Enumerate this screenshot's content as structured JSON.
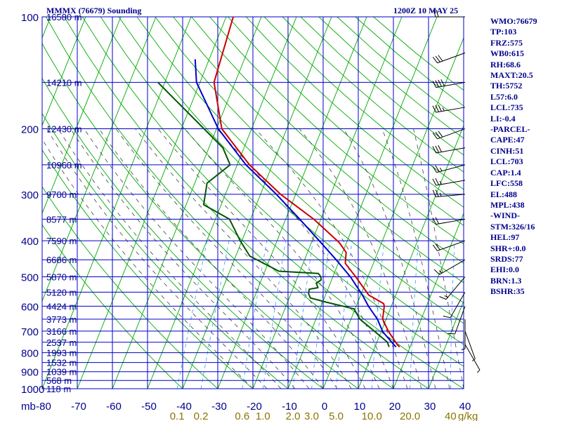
{
  "header": {
    "title_left": "MMMX (76679) Sounding",
    "title_right": "1200Z 10 MAY 25"
  },
  "side_panel": {
    "lines": [
      "WMO:76679",
      "TP:103",
      "FRZ:575",
      "WB0:615",
      "RH:68.6",
      "MAXT:20.5",
      "TH:5752",
      "L57:6.0",
      "LCL:735",
      "LI:-0.4",
      "-PARCEL-",
      "CAPE:47",
      "CINH:51",
      "LCL:703",
      "CAP:1.4",
      "LFC:558",
      "EL:488",
      "MPL:438",
      "-WIND-",
      "STM:326/16",
      "HEL:97",
      "SHR+:0.0",
      "SRDS:77",
      "EHI:0.0",
      "BRN:1.3",
      "BSHR:35"
    ]
  },
  "colors": {
    "background": "#ffffff",
    "grid": "#0000cc",
    "isotherm_dry_adiabat": "#00aa00",
    "moist_adiabat": "#404040",
    "mixing_ratio": "#3399ff",
    "temperature": "#cc0000",
    "parcel": "#0000cc",
    "dewpoint": "#005500",
    "wind_barb": "#000000",
    "text": "#00008b",
    "mixing_label": "#8b7500"
  },
  "chart_data": {
    "type": "line",
    "chart_kind": "skew-T log-P sounding",
    "y_scale": "log",
    "pressure_levels": [
      100,
      200,
      300,
      400,
      500,
      600,
      700,
      800,
      900,
      1000
    ],
    "x_ticks": [
      -80,
      -70,
      -60,
      -50,
      -40,
      -30,
      -20,
      -10,
      0,
      10,
      20,
      30,
      40
    ],
    "x_tick_labels": [
      "-80",
      "-70",
      "-60",
      "-50",
      "-40",
      "-30",
      "-20",
      "-10",
      "0",
      "10",
      "20",
      "30",
      "40"
    ],
    "y_axis_unit": "mb",
    "x_range": [
      -80,
      40
    ],
    "y_range": [
      1000,
      100
    ],
    "grid": true,
    "mixing_ratio_labels": [
      {
        "w": 0.1,
        "label": "0.1"
      },
      {
        "w": 0.2,
        "label": "0.2"
      },
      {
        "w": 0.6,
        "label": "0.6"
      },
      {
        "w": 1.0,
        "label": "1.0"
      },
      {
        "w": 2.0,
        "label": "2.0"
      },
      {
        "w": 3.0,
        "label": "3.0"
      },
      {
        "w": 5.0,
        "label": "5.0"
      },
      {
        "w": 10.0,
        "label": "10.0"
      },
      {
        "w": 20.0,
        "label": "20.0"
      },
      {
        "w": 40.0,
        "label": "40"
      }
    ],
    "mixing_unit_label": "g/kg",
    "height_labels": [
      {
        "p": 100,
        "label": "16580 m"
      },
      {
        "p": 150,
        "label": "14210 m"
      },
      {
        "p": 200,
        "label": "12430 m"
      },
      {
        "p": 250,
        "label": "10960 m"
      },
      {
        "p": 300,
        "label": "9700 m"
      },
      {
        "p": 350,
        "label": "8577 m"
      },
      {
        "p": 400,
        "label": "7590 m"
      },
      {
        "p": 450,
        "label": "6686 m"
      },
      {
        "p": 500,
        "label": "5870 m"
      },
      {
        "p": 550,
        "label": "5120 m"
      },
      {
        "p": 600,
        "label": "4424 m"
      },
      {
        "p": 650,
        "label": "3773 m"
      },
      {
        "p": 700,
        "label": "3166 m"
      },
      {
        "p": 750,
        "label": "2537 m"
      },
      {
        "p": 800,
        "label": "1993 m"
      },
      {
        "p": 850,
        "label": "1532 m"
      },
      {
        "p": 900,
        "label": "1039 m"
      },
      {
        "p": 950,
        "label": "568 m"
      },
      {
        "p": 1000,
        "label": "118 m"
      }
    ],
    "series": [
      {
        "role": "temperature",
        "points": [
          [
            772,
            17
          ],
          [
            760,
            16
          ],
          [
            700,
            12
          ],
          [
            650,
            9
          ],
          [
            600,
            8
          ],
          [
            590,
            7.5
          ],
          [
            560,
            2.3
          ],
          [
            500,
            -3.5
          ],
          [
            460,
            -8
          ],
          [
            430,
            -9
          ],
          [
            405,
            -12
          ],
          [
            350,
            -22
          ],
          [
            300,
            -34.3
          ],
          [
            250,
            -46.5
          ],
          [
            200,
            -58.5
          ],
          [
            150,
            -66
          ],
          [
            100,
            -68
          ]
        ]
      },
      {
        "role": "parcel",
        "points": [
          [
            772,
            16
          ],
          [
            760,
            15
          ],
          [
            703,
            10.5
          ],
          [
            650,
            7.5
          ],
          [
            600,
            3.5
          ],
          [
            560,
            0.5
          ],
          [
            500,
            -5
          ],
          [
            450,
            -11
          ],
          [
            400,
            -18
          ],
          [
            350,
            -26
          ],
          [
            300,
            -35.5
          ],
          [
            250,
            -47.5
          ],
          [
            200,
            -59.5
          ],
          [
            150,
            -71
          ],
          [
            130,
            -74
          ]
        ]
      },
      {
        "role": "dewpoint",
        "points": [
          [
            772,
            14
          ],
          [
            750,
            13
          ],
          [
            700,
            8
          ],
          [
            650,
            2.5
          ],
          [
            610,
            -0.3
          ],
          [
            585,
            -9
          ],
          [
            570,
            -14
          ],
          [
            555,
            -15
          ],
          [
            540,
            -15.3
          ],
          [
            535,
            -13
          ],
          [
            520,
            -14
          ],
          [
            510,
            -13
          ],
          [
            500,
            -13.4
          ],
          [
            490,
            -14.5
          ],
          [
            483,
            -26
          ],
          [
            440,
            -36
          ],
          [
            400,
            -40.5
          ],
          [
            350,
            -46
          ],
          [
            320,
            -55
          ],
          [
            280,
            -56.5
          ],
          [
            250,
            -52
          ],
          [
            225,
            -56
          ],
          [
            150,
            -82
          ]
        ]
      }
    ],
    "wind_barbs": [
      {
        "p": 100,
        "dir": 270,
        "spd": 20
      },
      {
        "p": 125,
        "dir": 250,
        "spd": 30
      },
      {
        "p": 150,
        "dir": 260,
        "spd": 40
      },
      {
        "p": 175,
        "dir": 260,
        "spd": 35
      },
      {
        "p": 200,
        "dir": 250,
        "spd": 30
      },
      {
        "p": 225,
        "dir": 260,
        "spd": 30
      },
      {
        "p": 250,
        "dir": 255,
        "spd": 25
      },
      {
        "p": 275,
        "dir": 260,
        "spd": 25
      },
      {
        "p": 300,
        "dir": 265,
        "spd": 25
      },
      {
        "p": 350,
        "dir": 260,
        "spd": 20
      },
      {
        "p": 400,
        "dir": 250,
        "spd": 20
      },
      {
        "p": 450,
        "dir": 240,
        "spd": 15
      },
      {
        "p": 500,
        "dir": 220,
        "spd": 15
      },
      {
        "p": 550,
        "dir": 210,
        "spd": 10
      },
      {
        "p": 600,
        "dir": 200,
        "spd": 10
      },
      {
        "p": 650,
        "dir": 180,
        "spd": 5
      },
      {
        "p": 700,
        "dir": 160,
        "spd": 5
      },
      {
        "p": 760,
        "dir": 150,
        "spd": 5
      }
    ]
  }
}
